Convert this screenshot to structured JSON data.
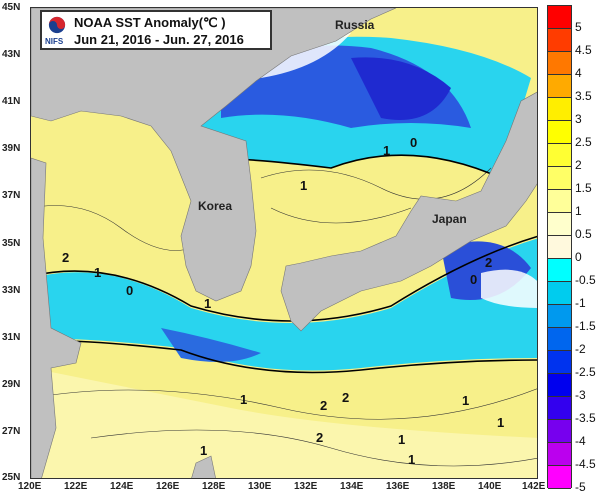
{
  "title": {
    "line1": "NOAA SST Anomaly(℃ )",
    "line2": "Jun 21, 2016 - Jun. 27, 2016",
    "logo_text": "NIFS"
  },
  "axes": {
    "lat_labels": [
      "45N",
      "43N",
      "41N",
      "39N",
      "37N",
      "35N",
      "33N",
      "31N",
      "29N",
      "27N",
      "25N"
    ],
    "lon_labels": [
      "120E",
      "122E",
      "124E",
      "126E",
      "128E",
      "130E",
      "132E",
      "134E",
      "136E",
      "138E",
      "140E",
      "142E"
    ]
  },
  "places": {
    "russia": "Russia",
    "korea": "Korea",
    "japan": "Japan"
  },
  "contour_labels": [
    "2",
    "1",
    "0",
    "1",
    "1",
    "0",
    "1",
    "0",
    "2",
    "2",
    "2",
    "2",
    "1",
    "1",
    "1",
    "1",
    "1",
    "1"
  ],
  "colorbar": {
    "labels": [
      "5",
      "4.5",
      "4",
      "3.5",
      "3",
      "2.5",
      "2",
      "1.5",
      "1",
      "0.5",
      "0",
      "-0.5",
      "-1",
      "-1.5",
      "-2",
      "-2.5",
      "-3",
      "-3.5",
      "-4",
      "-4.5",
      "-5"
    ],
    "colors": [
      "#ff0000",
      "#ff3c00",
      "#ff7800",
      "#ffaa00",
      "#ffee00",
      "#ffff00",
      "#ffff33",
      "#ffff66",
      "#ffff99",
      "#ffffcc",
      "#fff9dd",
      "#00ffff",
      "#00ccee",
      "#0099ee",
      "#0066ee",
      "#0033ee",
      "#0000ee",
      "#3300ee",
      "#7700ee",
      "#bb00ee",
      "#ff00ff"
    ]
  },
  "colors": {
    "land": "#c0c0c0",
    "sea_warm": "#f7f08a",
    "sea_cool": "#29d4ee",
    "sea_cold": "#2244dd",
    "missing": "#ffffff"
  }
}
